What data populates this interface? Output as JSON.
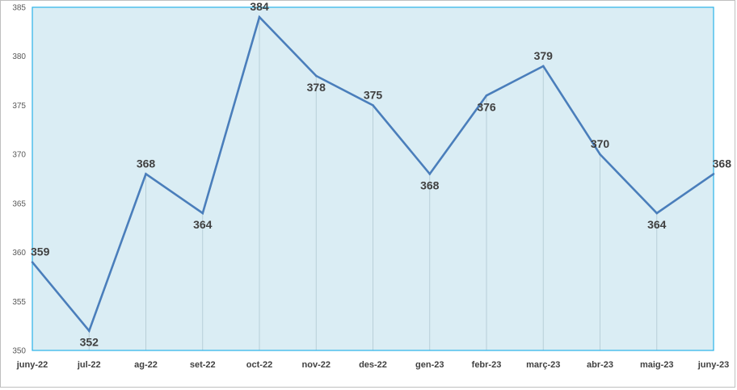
{
  "chart_data": {
    "type": "line",
    "title": "",
    "xlabel": "",
    "ylabel": "",
    "categories": [
      "juny-22",
      "jul-22",
      "ag-22",
      "set-22",
      "oct-22",
      "nov-22",
      "des-22",
      "gen-23",
      "febr-23",
      "març-23",
      "abr-23",
      "maig-23",
      "juny-23"
    ],
    "series": [
      {
        "values": [
          359,
          352,
          368,
          364,
          384,
          378,
          375,
          368,
          376,
          379,
          370,
          364,
          368
        ]
      }
    ],
    "label_position": [
      "above",
      "below",
      "above",
      "below",
      "above",
      "below",
      "above",
      "below",
      "below",
      "above",
      "above",
      "below",
      "above"
    ],
    "ylim": [
      350,
      385
    ],
    "yticks": [
      350,
      355,
      360,
      365,
      370,
      375,
      380,
      385
    ],
    "grid": "vertical drop lines",
    "legend": "none",
    "colors": {
      "line": "#4a7ebb",
      "plot_background": "#daedf4",
      "plot_border": "#29b2e8",
      "drop_line": "#b8cfd8"
    }
  }
}
